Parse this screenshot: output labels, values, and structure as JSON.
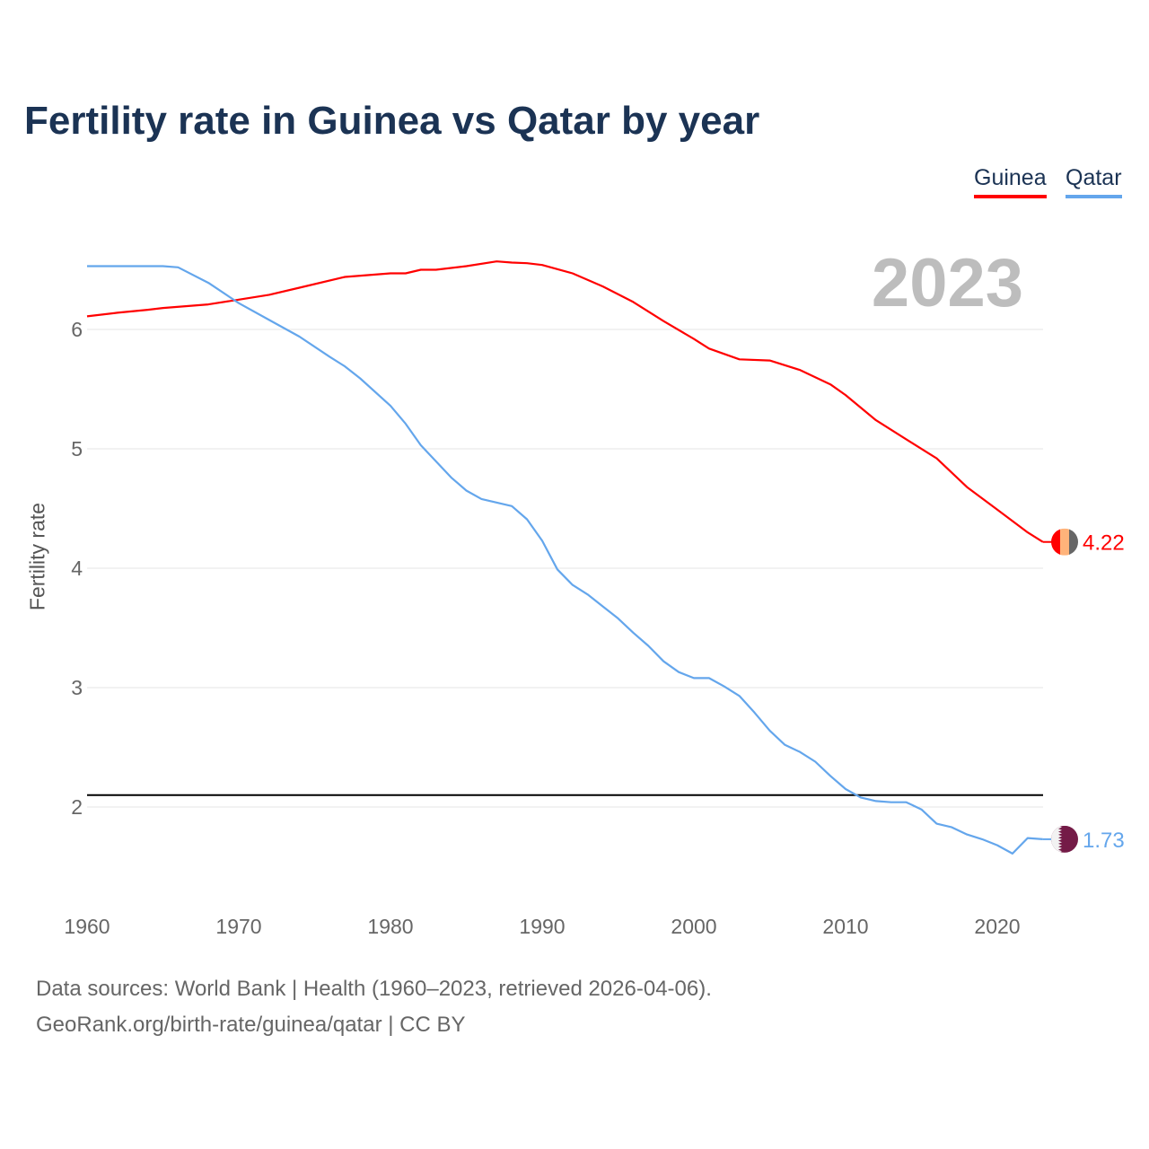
{
  "chart_data": {
    "type": "line",
    "title": "Fertility rate in Guinea vs Qatar by year",
    "xlabel": "",
    "ylabel": "Fertility rate",
    "year_label": "2023",
    "xlim": [
      1960,
      2023
    ],
    "ylim": [
      1.4,
      6.8
    ],
    "x_ticks": [
      "1960",
      "1970",
      "1980",
      "1990",
      "2000",
      "2010",
      "2020"
    ],
    "y_ticks": [
      "2",
      "3",
      "4",
      "5",
      "6"
    ],
    "reference_line": 2.1,
    "legend_position": "top-right",
    "series": [
      {
        "name": "Guinea",
        "color": "#ff0000",
        "end_label": "4.22",
        "flag": [
          "#ff0000",
          "#ffb37a",
          "#666666"
        ],
        "points": [
          [
            1960,
            6.11
          ],
          [
            1962,
            6.14
          ],
          [
            1964,
            6.165
          ],
          [
            1965,
            6.18
          ],
          [
            1968,
            6.21
          ],
          [
            1970,
            6.25
          ],
          [
            1972,
            6.29
          ],
          [
            1974,
            6.35
          ],
          [
            1977,
            6.44
          ],
          [
            1980,
            6.47
          ],
          [
            1981,
            6.47
          ],
          [
            1982,
            6.5
          ],
          [
            1983,
            6.5
          ],
          [
            1985,
            6.53
          ],
          [
            1987,
            6.57
          ],
          [
            1988,
            6.56
          ],
          [
            1989,
            6.555
          ],
          [
            1990,
            6.54
          ],
          [
            1992,
            6.47
          ],
          [
            1994,
            6.36
          ],
          [
            1996,
            6.23
          ],
          [
            1998,
            6.07
          ],
          [
            2000,
            5.92
          ],
          [
            2001,
            5.84
          ],
          [
            2003,
            5.75
          ],
          [
            2005,
            5.74
          ],
          [
            2007,
            5.66
          ],
          [
            2009,
            5.54
          ],
          [
            2010,
            5.45
          ],
          [
            2012,
            5.24
          ],
          [
            2014,
            5.08
          ],
          [
            2016,
            4.92
          ],
          [
            2018,
            4.68
          ],
          [
            2020,
            4.49
          ],
          [
            2022,
            4.3
          ],
          [
            2023,
            4.22
          ]
        ]
      },
      {
        "name": "Qatar",
        "color": "#64a6ec",
        "end_label": "1.73",
        "flag": [
          "#f2f2f2",
          "#741b47"
        ],
        "points": [
          [
            1960,
            6.53
          ],
          [
            1965,
            6.53
          ],
          [
            1966,
            6.52
          ],
          [
            1968,
            6.39
          ],
          [
            1970,
            6.22
          ],
          [
            1972,
            6.08
          ],
          [
            1974,
            5.94
          ],
          [
            1976,
            5.77
          ],
          [
            1977,
            5.69
          ],
          [
            1978,
            5.59
          ],
          [
            1980,
            5.36
          ],
          [
            1981,
            5.21
          ],
          [
            1982,
            5.03
          ],
          [
            1984,
            4.76
          ],
          [
            1985,
            4.65
          ],
          [
            1986,
            4.58
          ],
          [
            1988,
            4.52
          ],
          [
            1989,
            4.41
          ],
          [
            1990,
            4.23
          ],
          [
            1991,
            3.99
          ],
          [
            1992,
            3.86
          ],
          [
            1993,
            3.78
          ],
          [
            1994,
            3.68
          ],
          [
            1995,
            3.58
          ],
          [
            1996,
            3.46
          ],
          [
            1997,
            3.35
          ],
          [
            1998,
            3.22
          ],
          [
            1999,
            3.13
          ],
          [
            2000,
            3.08
          ],
          [
            2001,
            3.08
          ],
          [
            2002,
            3.01
          ],
          [
            2003,
            2.93
          ],
          [
            2004,
            2.79
          ],
          [
            2005,
            2.64
          ],
          [
            2006,
            2.52
          ],
          [
            2007,
            2.46
          ],
          [
            2008,
            2.38
          ],
          [
            2009,
            2.26
          ],
          [
            2010,
            2.15
          ],
          [
            2011,
            2.08
          ],
          [
            2012,
            2.05
          ],
          [
            2013,
            2.04
          ],
          [
            2014,
            2.04
          ],
          [
            2015,
            1.98
          ],
          [
            2016,
            1.86
          ],
          [
            2017,
            1.83
          ],
          [
            2018,
            1.77
          ],
          [
            2019,
            1.73
          ],
          [
            2020,
            1.68
          ],
          [
            2021,
            1.61
          ],
          [
            2022,
            1.74
          ],
          [
            2023,
            1.73
          ]
        ]
      }
    ]
  },
  "footer": {
    "sources": "Data sources: World Bank | Health (1960–2023, retrieved 2026-04-06).",
    "credit": "GeoRank.org/birth-rate/guinea/qatar | CC BY"
  }
}
